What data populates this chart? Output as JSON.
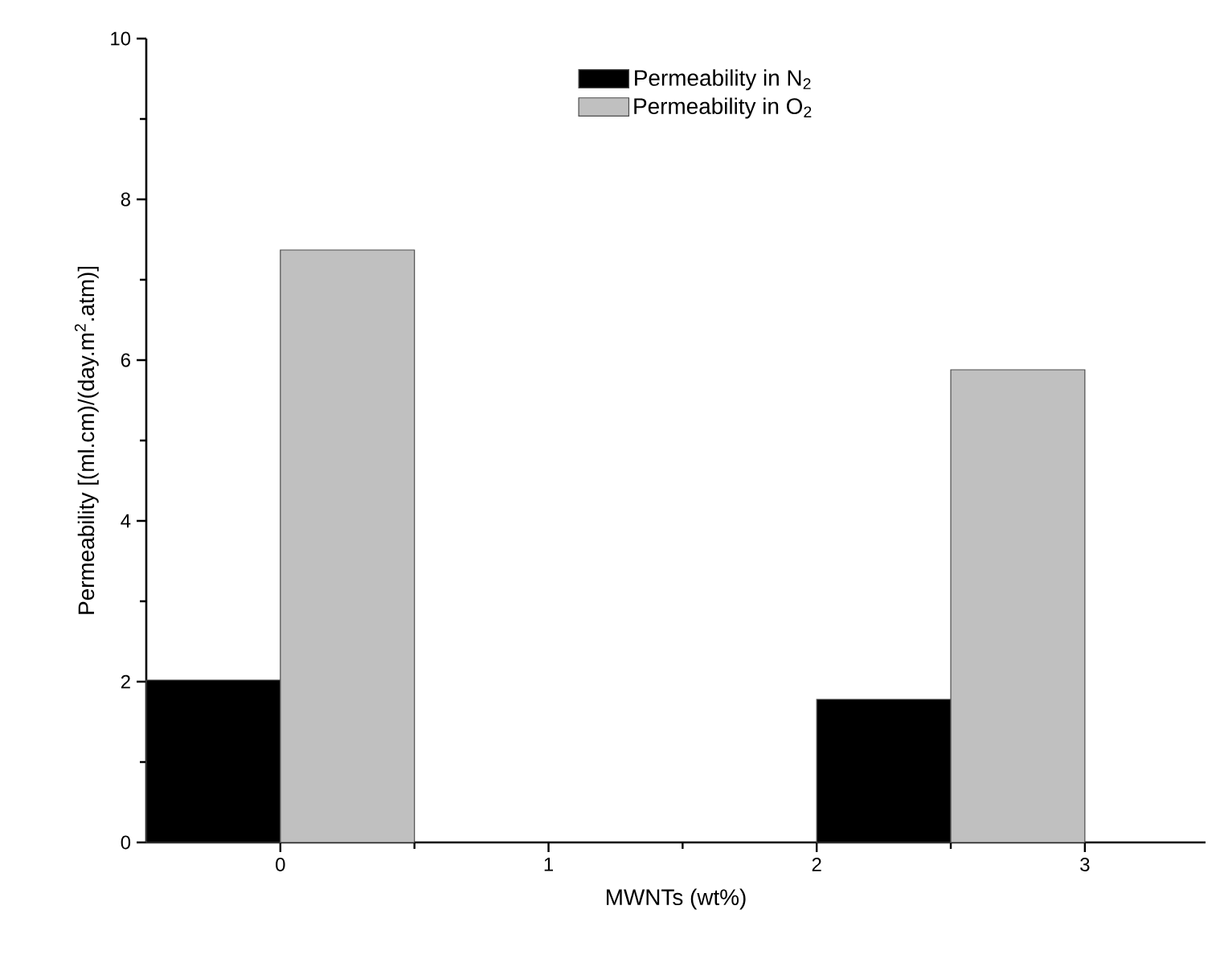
{
  "chart_data": {
    "type": "bar",
    "xlabel": "MWNTs (wt%)",
    "ylabel": "Permeability [(ml.cm)/(day.m$^{2}$.atm)]",
    "series": [
      {
        "name": "Permeability in N$_{2}$",
        "color": "#000000",
        "x": [
          -0.25,
          2.25
        ],
        "values": [
          2.02,
          1.78
        ]
      },
      {
        "name": "Permeability in O$_{2}$",
        "color": "#c0c0c0",
        "x": [
          0.25,
          2.75
        ],
        "values": [
          7.37,
          5.88
        ]
      }
    ],
    "xlim": [
      -0.5,
      3.45
    ],
    "xticks": [
      0,
      1,
      2,
      3
    ],
    "ylim": [
      0,
      10
    ],
    "yticks": [
      0,
      2,
      4,
      6,
      8,
      10
    ],
    "grid": false,
    "legend": "top"
  }
}
